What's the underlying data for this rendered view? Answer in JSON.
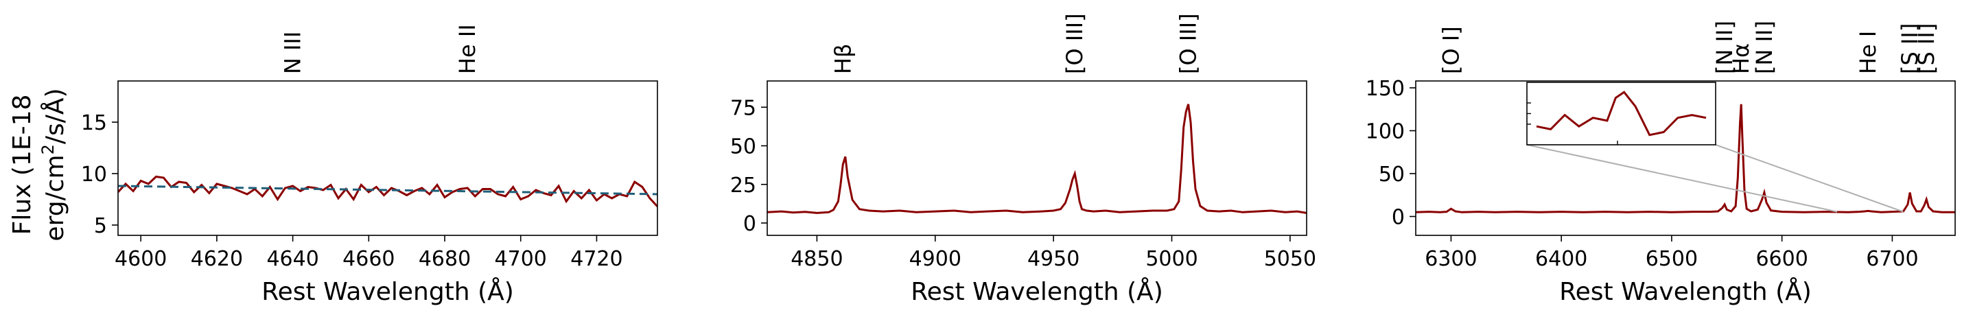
{
  "colors": {
    "spectrum": "#8b0000",
    "continuum": "#1f5f7a",
    "inset_connector": "#b0b0b0"
  },
  "figure": {
    "ylabel": "Flux (1E-18 erg/cm$^2$/s/Å)"
  },
  "chart_data": [
    {
      "type": "line",
      "xlabel": "Rest Wavelength (Å)",
      "xlim": [
        4594,
        4736
      ],
      "ylim": [
        4,
        19
      ],
      "xticks": [
        4600,
        4620,
        4640,
        4660,
        4680,
        4700,
        4720
      ],
      "yticks": [
        5,
        10,
        15
      ],
      "line_labels": [
        {
          "text": "N III",
          "x": 4640
        },
        {
          "text": "He II",
          "x": 4686
        }
      ],
      "series": [
        {
          "style": "solid",
          "x": [
            4594,
            4596,
            4598,
            4600,
            4602,
            4604,
            4606,
            4608,
            4610,
            4612,
            4614,
            4616,
            4618,
            4620,
            4622,
            4624,
            4626,
            4628,
            4630,
            4632,
            4634,
            4636,
            4638,
            4640,
            4642,
            4644,
            4646,
            4648,
            4650,
            4652,
            4654,
            4656,
            4658,
            4660,
            4662,
            4664,
            4666,
            4668,
            4670,
            4672,
            4674,
            4676,
            4678,
            4680,
            4682,
            4684,
            4686,
            4688,
            4690,
            4692,
            4694,
            4696,
            4698,
            4700,
            4702,
            4704,
            4706,
            4708,
            4710,
            4712,
            4714,
            4716,
            4718,
            4720,
            4722,
            4724,
            4726,
            4728,
            4730,
            4732,
            4734,
            4736
          ],
          "y": [
            8.2,
            9.0,
            8.3,
            9.3,
            9.0,
            9.7,
            9.6,
            8.7,
            9.2,
            9.1,
            8.2,
            8.9,
            8.1,
            9.0,
            8.8,
            8.6,
            8.3,
            8.0,
            8.5,
            7.8,
            8.7,
            7.5,
            8.6,
            8.8,
            8.3,
            8.7,
            8.6,
            8.4,
            8.9,
            7.6,
            8.5,
            7.5,
            8.9,
            8.2,
            8.7,
            7.9,
            8.6,
            8.3,
            7.9,
            8.3,
            8.6,
            8.0,
            8.9,
            7.7,
            8.2,
            8.5,
            8.6,
            7.8,
            8.5,
            8.5,
            8.0,
            7.8,
            8.7,
            7.5,
            7.8,
            8.4,
            8.1,
            7.9,
            8.8,
            7.3,
            8.3,
            7.6,
            8.4,
            7.4,
            8.0,
            7.6,
            8.0,
            7.8,
            9.2,
            8.7,
            7.6,
            6.8
          ]
        },
        {
          "style": "dashed",
          "x": [
            4594,
            4736
          ],
          "y": [
            8.8,
            8.0
          ]
        }
      ]
    },
    {
      "type": "line",
      "xlabel": "Rest Wavelength (Å)",
      "xlim": [
        4829,
        5057
      ],
      "ylim": [
        -8,
        92
      ],
      "xticks": [
        4850,
        4900,
        4950,
        5000,
        5050
      ],
      "yticks": [
        0,
        25,
        50,
        75
      ],
      "line_labels": [
        {
          "text": "Hβ",
          "x": 4861
        },
        {
          "text": "[O III]",
          "x": 4959
        },
        {
          "text": "[O III]",
          "x": 5007
        }
      ],
      "series": [
        {
          "style": "solid",
          "x": [
            4829,
            4835,
            4840,
            4845,
            4850,
            4855,
            4857,
            4859,
            4860,
            4861,
            4862,
            4863,
            4865,
            4868,
            4872,
            4878,
            4885,
            4892,
            4900,
            4908,
            4915,
            4922,
            4930,
            4937,
            4945,
            4950,
            4953,
            4955,
            4957,
            4958,
            4959,
            4960,
            4961,
            4962,
            4964,
            4967,
            4972,
            4978,
            4985,
            4992,
            4998,
            5001,
            5003,
            5004,
            5005,
            5006,
            5007,
            5008,
            5009,
            5010,
            5012,
            5015,
            5020,
            5025,
            5030,
            5036,
            5042,
            5048,
            5053,
            5057
          ],
          "y": [
            7,
            7.5,
            6.8,
            7.2,
            6.5,
            7,
            8.5,
            14,
            25,
            38,
            43,
            30,
            15,
            9,
            8,
            7.5,
            8,
            7,
            7.5,
            8,
            7,
            7.5,
            8,
            7,
            7.5,
            8,
            9,
            13,
            22,
            28,
            32,
            24,
            14,
            9,
            8,
            7.5,
            8,
            7,
            7.5,
            8,
            8,
            9,
            14,
            35,
            62,
            72,
            77,
            65,
            40,
            22,
            11,
            8,
            7.5,
            8,
            7,
            7.5,
            8,
            7,
            7.5,
            6.5
          ]
        }
      ]
    },
    {
      "type": "line",
      "xlabel": "Rest Wavelength (Å)",
      "xlim": [
        6268,
        6757
      ],
      "ylim": [
        -22,
        158
      ],
      "xticks": [
        6300,
        6400,
        6500,
        6600,
        6700
      ],
      "yticks": [
        0,
        50,
        100,
        150
      ],
      "line_labels": [
        {
          "text": "[O I]",
          "x": 6300
        },
        {
          "text": "[N II]",
          "x": 6548
        },
        {
          "text": "Hα",
          "x": 6563
        },
        {
          "text": "[N II]",
          "x": 6584
        },
        {
          "text": "He I",
          "x": 6678
        },
        {
          "text": "[S II]",
          "x": 6716
        },
        {
          "text": "[S II]",
          "x": 6731
        }
      ],
      "series": [
        {
          "style": "solid",
          "x": [
            6268,
            6280,
            6290,
            6296,
            6300,
            6304,
            6310,
            6325,
            6340,
            6360,
            6380,
            6400,
            6420,
            6440,
            6460,
            6480,
            6500,
            6520,
            6535,
            6542,
            6546,
            6548,
            6550,
            6554,
            6558,
            6560,
            6562,
            6563,
            6564,
            6566,
            6568,
            6572,
            6578,
            6582,
            6584,
            6586,
            6590,
            6600,
            6620,
            6640,
            6660,
            6670,
            6675,
            6678,
            6681,
            6690,
            6700,
            6710,
            6714,
            6716,
            6718,
            6722,
            6726,
            6729,
            6731,
            6733,
            6737,
            6745,
            6757
          ],
          "y": [
            5,
            5.5,
            5,
            5.5,
            9,
            6,
            5,
            5.5,
            5,
            5.5,
            5,
            5.5,
            5,
            5.5,
            5,
            5.5,
            5,
            5.5,
            5.5,
            6,
            10,
            14,
            8,
            6,
            12,
            45,
            110,
            131,
            95,
            30,
            9,
            6,
            8,
            20,
            28,
            16,
            7,
            5.5,
            5,
            5.5,
            5,
            5.5,
            6,
            6.5,
            6,
            5,
            5.5,
            6,
            14,
            28,
            15,
            6,
            6,
            13,
            20,
            11,
            6,
            5,
            5
          ]
        }
      ],
      "inset": {
        "x": [
          6650,
          6655,
          6660,
          6665,
          6670,
          6675,
          6678,
          6681,
          6685,
          6690,
          6695,
          6700,
          6705,
          6710
        ],
        "y": [
          5.3,
          5.2,
          5.7,
          5.3,
          5.6,
          5.5,
          6.3,
          6.5,
          6.0,
          5.0,
          5.1,
          5.6,
          5.7,
          5.6
        ]
      }
    }
  ]
}
